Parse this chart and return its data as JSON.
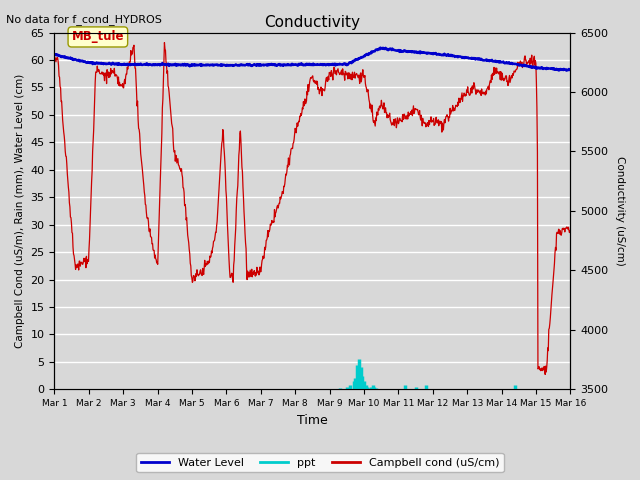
{
  "title": "Conductivity",
  "top_left_text": "No data for f_cond_HYDROS",
  "xlabel": "Time",
  "ylabel_left": "Campbell Cond (uS/m), Rain (mm), Water Level (cm)",
  "ylabel_right": "Conductivity (uS/cm)",
  "ylim_left": [
    0,
    65
  ],
  "ylim_right": [
    3500,
    6500
  ],
  "yticks_left": [
    0,
    5,
    10,
    15,
    20,
    25,
    30,
    35,
    40,
    45,
    50,
    55,
    60,
    65
  ],
  "yticks_right": [
    3500,
    4000,
    4500,
    5000,
    5500,
    6000,
    6500
  ],
  "annotation_box": "MB_tule",
  "background_color": "#d8d8d8",
  "plot_bg_color": "#d8d8d8",
  "grid_color": "white",
  "water_level_color": "#0000cc",
  "ppt_color": "#00cccc",
  "campbell_cond_color": "#cc0000",
  "legend_labels": [
    "Water Level",
    "ppt",
    "Campbell cond (uS/cm)"
  ],
  "x_tick_labels": [
    "Mar 1",
    "Mar 2",
    "Mar 3",
    "Mar 4",
    "Mar 5",
    "Mar 6",
    "Mar 7",
    "Mar 8",
    "Mar 9",
    "Mar 10",
    "Mar 11",
    "Mar 12",
    "Mar 13",
    "Mar 14",
    "Mar 15",
    "Mar 16"
  ]
}
